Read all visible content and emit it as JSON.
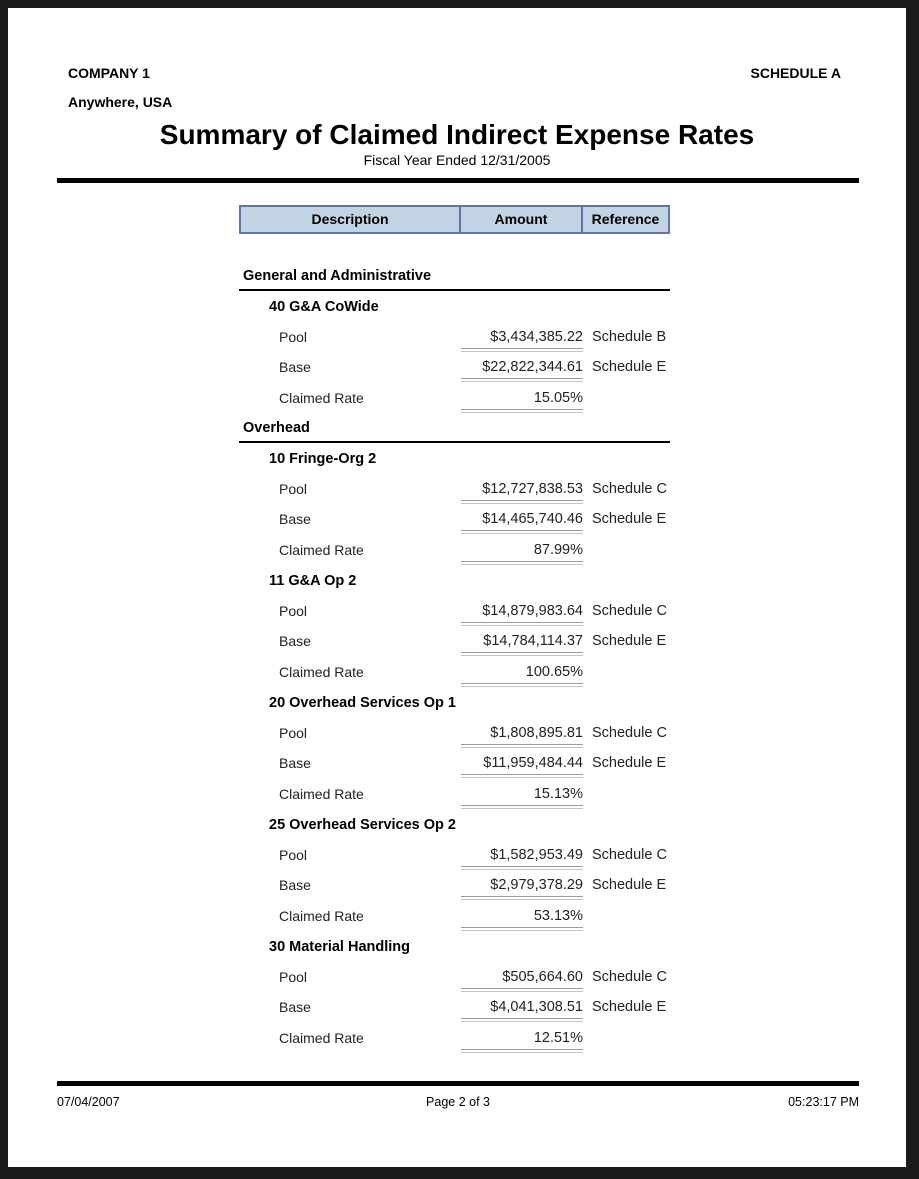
{
  "header": {
    "company": "COMPANY 1",
    "schedule": "SCHEDULE A",
    "address": "Anywhere, USA",
    "title": "Summary of Claimed Indirect Expense Rates",
    "subtitle": "Fiscal Year Ended 12/31/2005"
  },
  "table": {
    "columns": [
      "Description",
      "Amount",
      "Reference"
    ],
    "header_bg": "#c2d3e3",
    "header_border": "#6472a8",
    "sections": [
      {
        "heading": "General and Administrative",
        "groups": [
          {
            "name": "40 G&A CoWide",
            "rows": [
              {
                "label": "Pool",
                "amount": "$3,434,385.22",
                "reference": "Schedule B"
              },
              {
                "label": "Base",
                "amount": "$22,822,344.61",
                "reference": "Schedule E"
              },
              {
                "label": "Claimed Rate",
                "amount": "15.05%",
                "reference": ""
              }
            ]
          }
        ]
      },
      {
        "heading": "Overhead",
        "groups": [
          {
            "name": "10 Fringe-Org 2",
            "rows": [
              {
                "label": "Pool",
                "amount": "$12,727,838.53",
                "reference": "Schedule C"
              },
              {
                "label": "Base",
                "amount": "$14,465,740.46",
                "reference": "Schedule E"
              },
              {
                "label": "Claimed Rate",
                "amount": "87.99%",
                "reference": ""
              }
            ]
          },
          {
            "name": "11 G&A Op 2",
            "rows": [
              {
                "label": "Pool",
                "amount": "$14,879,983.64",
                "reference": "Schedule C"
              },
              {
                "label": "Base",
                "amount": "$14,784,114.37",
                "reference": "Schedule E"
              },
              {
                "label": "Claimed Rate",
                "amount": "100.65%",
                "reference": ""
              }
            ]
          },
          {
            "name": "20 Overhead Services Op 1",
            "rows": [
              {
                "label": "Pool",
                "amount": "$1,808,895.81",
                "reference": "Schedule C"
              },
              {
                "label": "Base",
                "amount": "$11,959,484.44",
                "reference": "Schedule E"
              },
              {
                "label": "Claimed Rate",
                "amount": "15.13%",
                "reference": ""
              }
            ]
          },
          {
            "name": "25 Overhead Services Op 2",
            "rows": [
              {
                "label": "Pool",
                "amount": "$1,582,953.49",
                "reference": "Schedule C"
              },
              {
                "label": "Base",
                "amount": "$2,979,378.29",
                "reference": "Schedule E"
              },
              {
                "label": "Claimed Rate",
                "amount": "53.13%",
                "reference": ""
              }
            ]
          },
          {
            "name": "30 Material Handling",
            "rows": [
              {
                "label": "Pool",
                "amount": "$505,664.60",
                "reference": "Schedule C"
              },
              {
                "label": "Base",
                "amount": "$4,041,308.51",
                "reference": "Schedule E"
              },
              {
                "label": "Claimed Rate",
                "amount": "12.51%",
                "reference": ""
              }
            ]
          }
        ]
      }
    ]
  },
  "footer": {
    "date": "07/04/2007",
    "page": "Page 2 of 3",
    "time": "05:23:17 PM"
  }
}
